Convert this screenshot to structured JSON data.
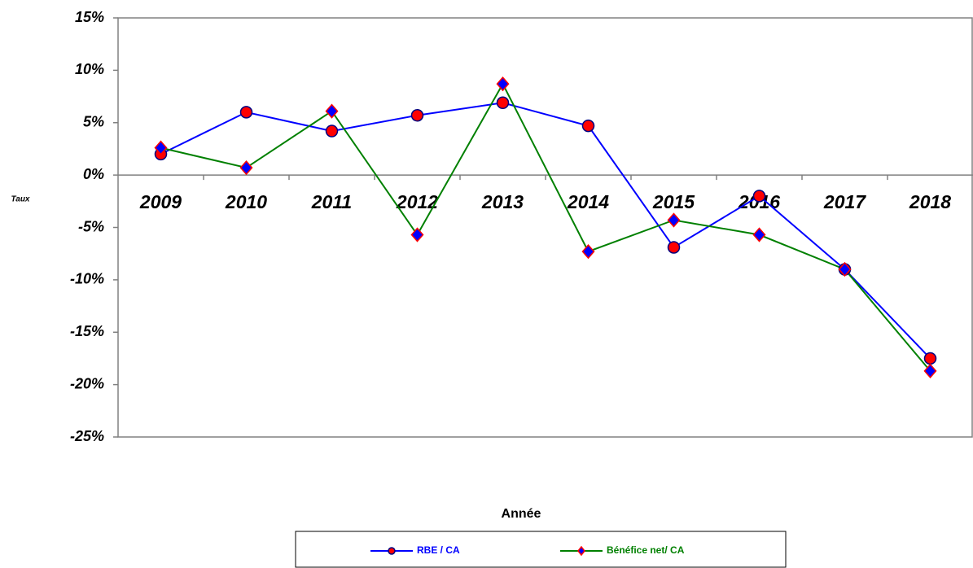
{
  "chart_data": {
    "type": "line",
    "ylabel": "Taux",
    "xlabel": "Année",
    "categories": [
      "2009",
      "2010",
      "2011",
      "2012",
      "2013",
      "2014",
      "2015",
      "2016",
      "2017",
      "2018"
    ],
    "series": [
      {
        "name": "RBE / CA",
        "color": "#0000ff",
        "marker": "circle",
        "marker_color": "#ff0000",
        "values": [
          2.0,
          6.0,
          4.2,
          5.7,
          6.9,
          4.7,
          -6.9,
          -2.0,
          -9.0,
          -17.5
        ]
      },
      {
        "name": "Bénéfice net/ CA",
        "color": "#008000",
        "marker": "diamond",
        "marker_color": "#0000ff",
        "values": [
          2.6,
          0.7,
          6.1,
          -5.7,
          8.7,
          -7.3,
          -4.3,
          -5.7,
          -9.0,
          -18.7
        ]
      }
    ],
    "ylim": [
      -25,
      15
    ],
    "yticks": [
      {
        "value": -25,
        "label": "-25%"
      },
      {
        "value": -20,
        "label": "-20%"
      },
      {
        "value": -15,
        "label": "-15%"
      },
      {
        "value": -10,
        "label": "-10%"
      },
      {
        "value": -5,
        "label": "-5%"
      },
      {
        "value": 0,
        "label": "0%"
      },
      {
        "value": 5,
        "label": "5%"
      },
      {
        "value": 10,
        "label": "10%"
      },
      {
        "value": 15,
        "label": "15%"
      }
    ],
    "grid": false,
    "legend": "bottom"
  }
}
